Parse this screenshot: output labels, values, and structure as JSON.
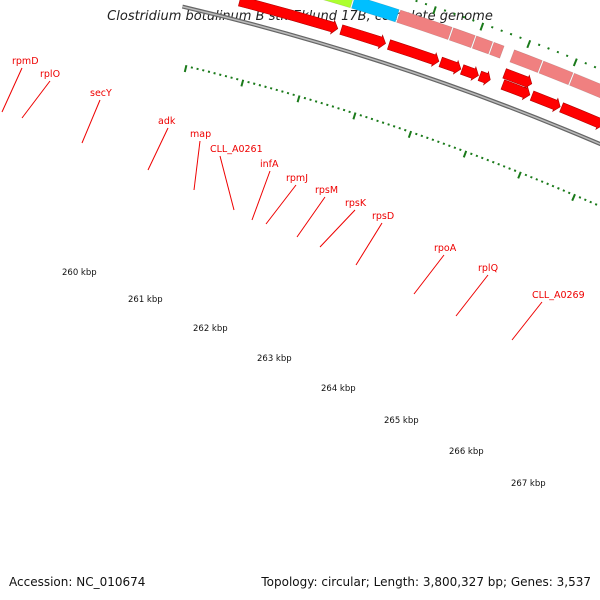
{
  "title": "Clostridium botulinum B str. Eklund 17B, complete genome",
  "accession": "Accession: NC_010674",
  "summary": "Topology: circular; Length: 3,800,327 bp; Genes: 3,537",
  "genes": [
    {
      "name": "rpmD",
      "color": "#f08080"
    },
    {
      "name": "rplO",
      "color": "#adff2f"
    },
    {
      "name": "secY",
      "color": "#00bfff"
    },
    {
      "name": "adk",
      "color": "#f08080"
    },
    {
      "name": "map",
      "color": "#f08080"
    },
    {
      "name": "CLL_A0261",
      "color": "#f08080"
    },
    {
      "name": "infA",
      "color": "#f08080"
    },
    {
      "name": "rpmJ",
      "color": "#f08080"
    },
    {
      "name": "rpsM",
      "color": "#f08080"
    },
    {
      "name": "rpsK",
      "color": "#f08080"
    },
    {
      "name": "rpsD",
      "color": "#f08080"
    },
    {
      "name": "rpoA",
      "color": "#ff8c00"
    },
    {
      "name": "rplQ",
      "color": "#f08080"
    },
    {
      "name": "CLL_A0269",
      "color": "#483d8b"
    }
  ],
  "kbp_ticks": [
    "260 kbp",
    "261 kbp",
    "262 kbp",
    "263 kbp",
    "264 kbp",
    "265 kbp",
    "266 kbp",
    "267 kbp"
  ],
  "colors": {
    "cds_arrow": "#ff0000",
    "gene_label": "#ee0000",
    "gc_skew_dots": "#1a7a1a",
    "backbone": "#888888"
  }
}
